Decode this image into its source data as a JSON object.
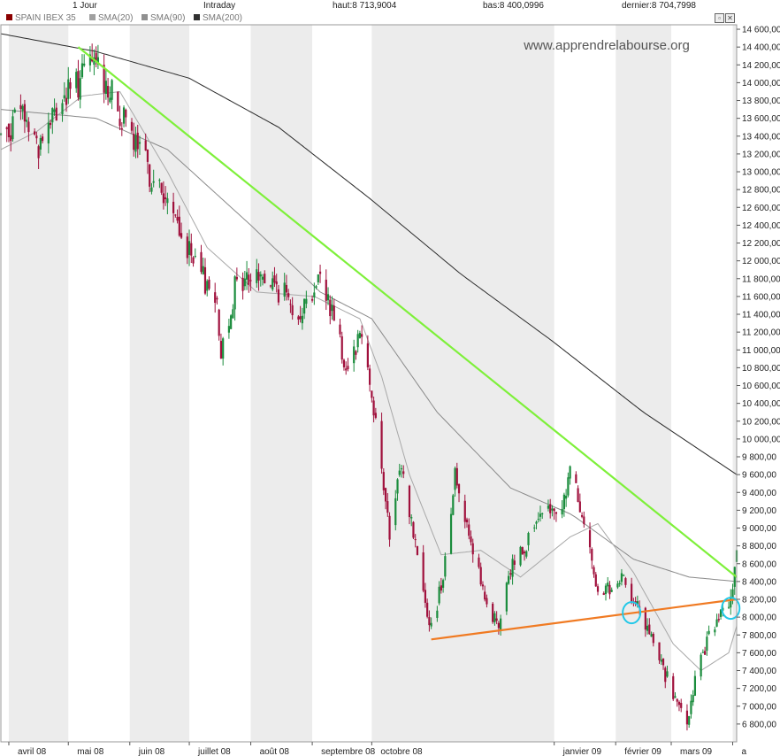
{
  "topbar": {
    "period": "1 Jour",
    "mode": "Intraday",
    "high": "haut:8 713,9004",
    "low": "bas:8 400,0996",
    "last": "dernier:8 704,7998"
  },
  "legend": [
    {
      "label": "SPAIN IBEX 35",
      "color": "#8b0000"
    },
    {
      "label": "SMA(20)",
      "color": "#a0a0a0"
    },
    {
      "label": "SMA(90)",
      "color": "#909090"
    },
    {
      "label": "SMA(200)",
      "color": "#303030"
    }
  ],
  "window_buttons": {
    "restore": "▫",
    "close": "✕"
  },
  "watermark": "www.apprendrelabourse.org",
  "colors": {
    "up": "#1a8c3c",
    "down": "#a0103c",
    "sma20": "#a8a8a8",
    "sma90": "#8a8a8a",
    "sma200": "#2a2a2a",
    "resistance": "#7ef03a",
    "support": "#f07a22",
    "highlight": "#22c8e8",
    "band": "#ececec"
  },
  "chart_data": {
    "type": "candlestick",
    "series_name": "SPAIN IBEX 35",
    "y_range": [
      6600,
      14650
    ],
    "y_ticks": [
      {
        "value": 14600,
        "label": "14 600,00"
      },
      {
        "value": 14400,
        "label": "14 400,00"
      },
      {
        "value": 14200,
        "label": "14 200,00"
      },
      {
        "value": 14000,
        "label": "14 000,00"
      },
      {
        "value": 13800,
        "label": "13 800,00"
      },
      {
        "value": 13600,
        "label": "13 600,00"
      },
      {
        "value": 13400,
        "label": "13 400,00"
      },
      {
        "value": 13200,
        "label": "13 200,00"
      },
      {
        "value": 13000,
        "label": "13 000,00"
      },
      {
        "value": 12800,
        "label": "12 800,00"
      },
      {
        "value": 12600,
        "label": "12 600,00"
      },
      {
        "value": 12400,
        "label": "12 400,00"
      },
      {
        "value": 12200,
        "label": "12 200,00"
      },
      {
        "value": 12000,
        "label": "12 000,00"
      },
      {
        "value": 11800,
        "label": "11 800,00"
      },
      {
        "value": 11600,
        "label": "11 600,00"
      },
      {
        "value": 11400,
        "label": "11 400,00"
      },
      {
        "value": 11200,
        "label": "11 200,00"
      },
      {
        "value": 11000,
        "label": "11 000,00"
      },
      {
        "value": 10800,
        "label": "10 800,00"
      },
      {
        "value": 10600,
        "label": "10 600,00"
      },
      {
        "value": 10400,
        "label": "10 400,00"
      },
      {
        "value": 10200,
        "label": "10 200,00"
      },
      {
        "value": 10000,
        "label": "10 000,00"
      },
      {
        "value": 9800,
        "label": "9 800,00"
      },
      {
        "value": 9600,
        "label": "9 600,00"
      },
      {
        "value": 9400,
        "label": "9 400,00"
      },
      {
        "value": 9200,
        "label": "9 200,00"
      },
      {
        "value": 9000,
        "label": "9 000,00"
      },
      {
        "value": 8800,
        "label": "8 800,00"
      },
      {
        "value": 8600,
        "label": "8 600,00"
      },
      {
        "value": 8400,
        "label": "8 400,00"
      },
      {
        "value": 8200,
        "label": "8 200,00"
      },
      {
        "value": 8000,
        "label": "8 000,00"
      },
      {
        "value": 7800,
        "label": "7 800,00"
      },
      {
        "value": 7600,
        "label": "7 600,00"
      },
      {
        "value": 7400,
        "label": "7 400,00"
      },
      {
        "value": 7200,
        "label": "7 200,00"
      },
      {
        "value": 7000,
        "label": "7 000,00"
      },
      {
        "value": 6800,
        "label": "6 800,00"
      }
    ],
    "x_range": [
      "2008-03-28",
      "2009-04-03"
    ],
    "x_ticks": [
      {
        "label": "avril 08",
        "date": "2008-04-01"
      },
      {
        "label": "mai 08",
        "date": "2008-05-01"
      },
      {
        "label": "juin 08",
        "date": "2008-06-01"
      },
      {
        "label": "juillet 08",
        "date": "2008-07-01"
      },
      {
        "label": "août 08",
        "date": "2008-08-01"
      },
      {
        "label": "septembre 08",
        "date": "2008-09-01"
      },
      {
        "label": "octobre 08",
        "date": "2008-10-01"
      },
      {
        "label": "janvier 09",
        "date": "2009-01-01"
      },
      {
        "label": "février 09",
        "date": "2009-02-01"
      },
      {
        "label": "mars 09",
        "date": "2009-03-01"
      },
      {
        "label": "a",
        "date": "2009-04-01"
      }
    ],
    "month_bands": true,
    "close_anchors": [
      [
        "2008-03-28",
        13400
      ],
      [
        "2008-04-08",
        13650
      ],
      [
        "2008-04-16",
        13300
      ],
      [
        "2008-04-28",
        13800
      ],
      [
        "2008-05-06",
        14000
      ],
      [
        "2008-05-14",
        14250
      ],
      [
        "2008-05-21",
        13950
      ],
      [
        "2008-05-29",
        13550
      ],
      [
        "2008-06-06",
        13200
      ],
      [
        "2008-06-16",
        12800
      ],
      [
        "2008-06-26",
        12350
      ],
      [
        "2008-07-04",
        11900
      ],
      [
        "2008-07-14",
        11650
      ],
      [
        "2008-07-17",
        11000
      ],
      [
        "2008-07-24",
        11700
      ],
      [
        "2008-08-04",
        11850
      ],
      [
        "2008-08-14",
        11700
      ],
      [
        "2008-08-26",
        11450
      ],
      [
        "2008-09-05",
        11800
      ],
      [
        "2008-09-12",
        11400
      ],
      [
        "2008-09-18",
        10800
      ],
      [
        "2008-09-26",
        11250
      ],
      [
        "2008-10-03",
        10200
      ],
      [
        "2008-10-10",
        8900
      ],
      [
        "2008-10-16",
        9700
      ],
      [
        "2008-10-24",
        8700
      ],
      [
        "2008-10-31",
        7850
      ],
      [
        "2008-11-06",
        8500
      ],
      [
        "2008-11-12",
        9600
      ],
      [
        "2008-11-20",
        8900
      ],
      [
        "2008-11-27",
        8150
      ],
      [
        "2008-12-04",
        7900
      ],
      [
        "2008-12-11",
        8600
      ],
      [
        "2008-12-22",
        9000
      ],
      [
        "2009-01-06",
        9300
      ],
      [
        "2009-01-09",
        9700
      ],
      [
        "2009-01-16",
        9000
      ],
      [
        "2009-01-23",
        8350
      ],
      [
        "2009-01-30",
        8250
      ],
      [
        "2009-02-06",
        8450
      ],
      [
        "2009-02-13",
        8050
      ],
      [
        "2009-02-20",
        7700
      ],
      [
        "2009-02-27",
        7300
      ],
      [
        "2009-03-06",
        6900
      ],
      [
        "2009-03-10",
        6800
      ],
      [
        "2009-03-13",
        7350
      ],
      [
        "2009-03-20",
        7750
      ],
      [
        "2009-03-27",
        8100
      ],
      [
        "2009-04-01",
        8300
      ],
      [
        "2009-04-03",
        8705
      ]
    ],
    "sma20_anchors": [
      [
        "2008-03-28",
        13250
      ],
      [
        "2008-04-15",
        13450
      ],
      [
        "2008-05-08",
        13850
      ],
      [
        "2008-05-27",
        13900
      ],
      [
        "2008-06-20",
        13000
      ],
      [
        "2008-07-10",
        12150
      ],
      [
        "2008-08-04",
        11650
      ],
      [
        "2008-09-02",
        11600
      ],
      [
        "2008-09-25",
        11350
      ],
      [
        "2008-10-06",
        10700
      ],
      [
        "2008-10-20",
        9600
      ],
      [
        "2008-11-05",
        8700
      ],
      [
        "2008-11-25",
        8750
      ],
      [
        "2008-12-15",
        8450
      ],
      [
        "2009-01-09",
        8900
      ],
      [
        "2009-01-23",
        9050
      ],
      [
        "2009-02-10",
        8500
      ],
      [
        "2009-03-02",
        7700
      ],
      [
        "2009-03-16",
        7400
      ],
      [
        "2009-03-30",
        7600
      ],
      [
        "2009-04-03",
        7900
      ]
    ],
    "sma90_anchors": [
      [
        "2008-03-28",
        13700
      ],
      [
        "2008-05-15",
        13600
      ],
      [
        "2008-06-20",
        13250
      ],
      [
        "2008-08-01",
        12400
      ],
      [
        "2008-09-05",
        11650
      ],
      [
        "2008-10-01",
        11350
      ],
      [
        "2008-11-03",
        10300
      ],
      [
        "2008-12-10",
        9450
      ],
      [
        "2009-01-10",
        9150
      ],
      [
        "2009-02-10",
        8650
      ],
      [
        "2009-03-10",
        8450
      ],
      [
        "2009-04-03",
        8400
      ]
    ],
    "sma200_anchors": [
      [
        "2008-03-28",
        14550
      ],
      [
        "2008-05-15",
        14350
      ],
      [
        "2008-07-01",
        14050
      ],
      [
        "2008-08-15",
        13500
      ],
      [
        "2008-09-30",
        12700
      ],
      [
        "2008-11-15",
        11850
      ],
      [
        "2008-12-31",
        11100
      ],
      [
        "2009-02-15",
        10300
      ],
      [
        "2009-04-03",
        9600
      ]
    ],
    "trendlines": [
      {
        "name": "resistance",
        "from": [
          "2008-05-06",
          14400
        ],
        "to": [
          "2009-04-03",
          8450
        ]
      },
      {
        "name": "support",
        "from": [
          "2008-10-31",
          7750
        ],
        "to": [
          "2009-04-03",
          8200
        ]
      }
    ],
    "highlights": [
      {
        "date": "2009-02-09",
        "value": 8050
      },
      {
        "date": "2009-03-31",
        "value": 8100
      }
    ]
  }
}
